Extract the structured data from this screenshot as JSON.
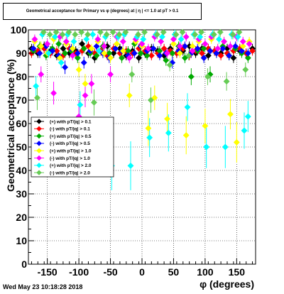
{
  "footer": {
    "timestamp": "Wed May 23 10:18:28 2018"
  },
  "chart_data": {
    "type": "scatter",
    "title": "Geometrical acceptance for Primary vs φ (degrees) at | η | <= 1.0 at pT > 0.1",
    "xlabel": "φ (degrees)",
    "ylabel": "Geometrical acceptance (%)",
    "xlim": [
      -180,
      180
    ],
    "ylim": [
      0,
      100
    ],
    "xticks": [
      -150,
      -100,
      -50,
      0,
      50,
      100,
      150
    ],
    "yticks": [
      0,
      10,
      20,
      30,
      40,
      50,
      60,
      70,
      80,
      90,
      100
    ],
    "grid": true,
    "legend_position": "left",
    "series": [
      {
        "name": "(+) with pT/|q| > 0.1",
        "color": "#000000",
        "x": [
          -175,
          -165,
          -155,
          -145,
          -135,
          -125,
          -115,
          -105,
          -95,
          -85,
          -75,
          -65,
          -55,
          -45,
          -35,
          -25,
          -15,
          -5,
          5,
          15,
          25,
          35,
          45,
          55,
          65,
          75,
          85,
          95,
          105,
          115,
          125,
          135,
          145,
          155,
          165,
          175
        ],
        "y": [
          92,
          90,
          93,
          91,
          89,
          92,
          90,
          91,
          94,
          90,
          88,
          91,
          93,
          90,
          92,
          89,
          91,
          88,
          90,
          92,
          91,
          89,
          92,
          90,
          91,
          93,
          90,
          92,
          89,
          91,
          90,
          92,
          88,
          91,
          90,
          92
        ]
      },
      {
        "name": "(-) with pT/|q| > 0.1",
        "color": "#ff0000",
        "x": [
          -175,
          -165,
          -155,
          -145,
          -135,
          -125,
          -115,
          -105,
          -95,
          -85,
          -75,
          -65,
          -55,
          -45,
          -35,
          -25,
          -15,
          -5,
          5,
          15,
          25,
          35,
          45,
          55,
          65,
          75,
          85,
          95,
          105,
          115,
          125,
          135,
          145,
          155,
          165,
          175
        ],
        "y": [
          90,
          91,
          92,
          90,
          91,
          89,
          92,
          90,
          91,
          93,
          90,
          91,
          89,
          92,
          90,
          91,
          90,
          92,
          91,
          89,
          90,
          92,
          91,
          90,
          92,
          89,
          91,
          90,
          92,
          91,
          89,
          90,
          91,
          92,
          90,
          91
        ]
      },
      {
        "name": "(+) with pT/|q| > 0.5",
        "color": "#00aa00",
        "x": [
          -172,
          -162,
          -152,
          -142,
          -132,
          -122,
          -112,
          -102,
          -92,
          -82,
          -72,
          -62,
          -52,
          -42,
          -32,
          -22,
          -12,
          -2,
          8,
          18,
          28,
          38,
          48,
          58,
          68,
          78,
          88,
          98,
          108,
          118,
          128,
          138,
          148,
          158,
          168
        ],
        "y": [
          91,
          93,
          89,
          92,
          94,
          90,
          91,
          88,
          92,
          90,
          89,
          93,
          90,
          92,
          88,
          91,
          94,
          90,
          89,
          92,
          91,
          87,
          90,
          93,
          88,
          80,
          91,
          92,
          81,
          90,
          93,
          89,
          92,
          90,
          88
        ]
      },
      {
        "name": "(-) with pT/|q| > 0.5",
        "color": "#0000ff",
        "x": [
          -172,
          -162,
          -152,
          -142,
          -132,
          -122,
          -112,
          -102,
          -92,
          -82,
          -72,
          -62,
          -52,
          -42,
          -32,
          -22,
          -12,
          -2,
          8,
          18,
          28,
          38,
          48,
          58,
          68,
          78,
          88,
          98,
          108,
          118,
          128,
          138,
          148,
          158,
          168
        ],
        "y": [
          92,
          90,
          93,
          91,
          89,
          84,
          92,
          90,
          86,
          91,
          93,
          90,
          88,
          92,
          91,
          89,
          90,
          93,
          91,
          92,
          89,
          90,
          86,
          91,
          93,
          90,
          92,
          88,
          91,
          90,
          92,
          89,
          93,
          91,
          90
        ]
      },
      {
        "name": "(+) with pT/|q| > 1.0",
        "color": "#ffff00",
        "x": [
          -170,
          -160,
          -150,
          -140,
          -130,
          -120,
          -110,
          -100,
          -90,
          -80,
          -70,
          -60,
          -50,
          -40,
          -30,
          -20,
          -10,
          0,
          10,
          20,
          30,
          40,
          50,
          60,
          70,
          80,
          90,
          100,
          110,
          120,
          130,
          140,
          150,
          160,
          170
        ],
        "y": [
          95,
          93,
          90,
          96,
          88,
          94,
          92,
          83,
          77,
          92,
          95,
          90,
          88,
          94,
          91,
          72,
          95,
          93,
          58,
          71,
          95,
          62,
          94,
          90,
          55,
          93,
          95,
          59,
          96,
          92,
          95,
          64,
          52,
          93,
          95
        ]
      },
      {
        "name": "(-) with pT/|q| > 1.0",
        "color": "#ff00ff",
        "x": [
          -170,
          -160,
          -150,
          -140,
          -130,
          -120,
          -110,
          -100,
          -90,
          -80,
          -70,
          -60,
          -50,
          -40,
          -30,
          -20,
          -10,
          0,
          10,
          20,
          30,
          40,
          50,
          60,
          70,
          80,
          90,
          100,
          110,
          120,
          130,
          140,
          150,
          160,
          170
        ],
        "y": [
          96,
          81,
          94,
          73,
          97,
          95,
          89,
          63,
          72,
          77,
          96,
          93,
          81,
          97,
          95,
          88,
          96,
          94,
          92,
          97,
          95,
          90,
          96,
          93,
          97,
          91,
          96,
          94,
          97,
          92,
          95,
          93,
          97,
          95,
          94
        ]
      },
      {
        "name": "(+) with pT/|q| > 2.0",
        "color": "#00ffff",
        "x": [
          -168,
          -158,
          -148,
          -138,
          -128,
          -118,
          -108,
          -98,
          -88,
          -78,
          -68,
          -58,
          -48,
          -38,
          -28,
          -18,
          -8,
          2,
          12,
          22,
          32,
          42,
          52,
          62,
          72,
          82,
          92,
          102,
          112,
          122,
          132,
          142,
          152,
          162,
          168
        ],
        "y": [
          76,
          98,
          90,
          97,
          86,
          98,
          95,
          68,
          96,
          98,
          91,
          97,
          42,
          97,
          98,
          42,
          97,
          96,
          54,
          98,
          97,
          56,
          98,
          96,
          67,
          98,
          97,
          50,
          98,
          96,
          50,
          98,
          97,
          57,
          63
        ]
      },
      {
        "name": "(-) with pT/|q| > 2.0",
        "color": "#66cc55",
        "x": [
          -166,
          -156,
          -146,
          -136,
          -126,
          -116,
          -106,
          -96,
          -86,
          -76,
          -66,
          -56,
          -46,
          -36,
          -26,
          -16,
          -6,
          4,
          14,
          24,
          34,
          44,
          54,
          64,
          74,
          84,
          94,
          104,
          114,
          124,
          134,
          144,
          154,
          164
        ],
        "y": [
          71,
          99,
          98,
          99,
          98,
          99,
          98,
          99,
          98,
          69,
          99,
          98,
          99,
          98,
          99,
          81,
          98,
          99,
          70,
          98,
          99,
          85,
          98,
          99,
          89,
          98,
          99,
          80,
          98,
          99,
          78,
          98,
          99,
          83
        ]
      }
    ]
  }
}
